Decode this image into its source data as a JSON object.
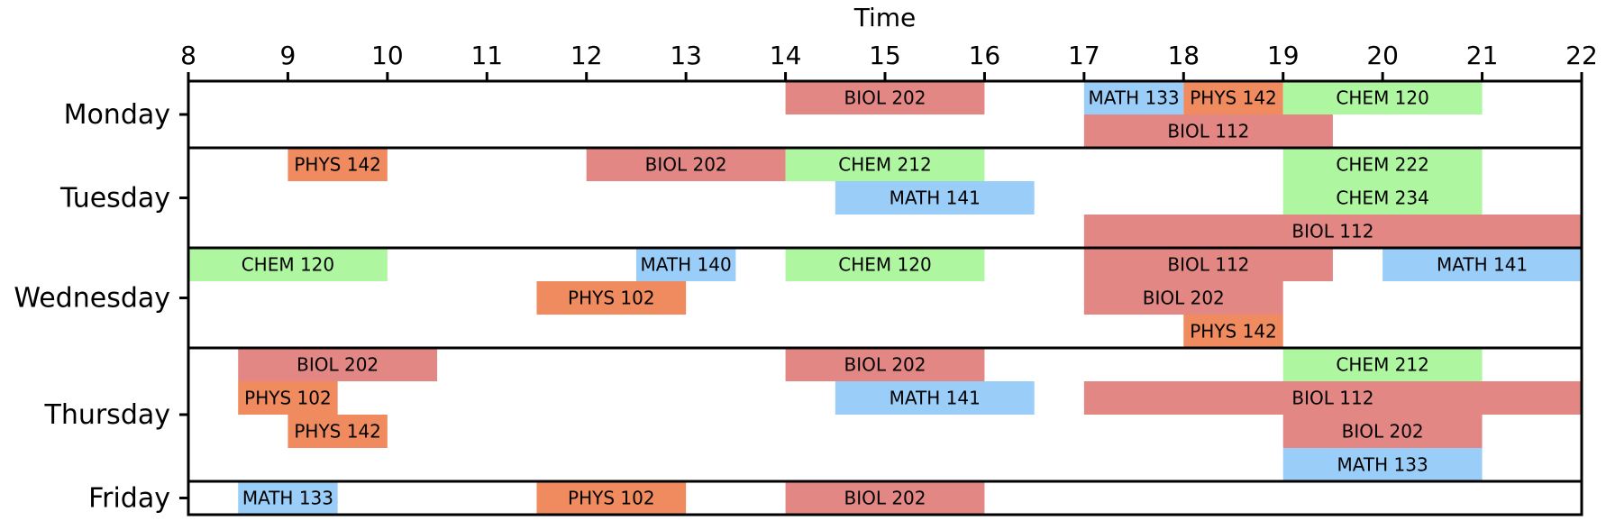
{
  "chart_data": {
    "type": "bar",
    "orientation": "horizontal",
    "xlabel": "Time",
    "xlim": [
      8,
      22
    ],
    "xticks": [
      "8",
      "9",
      "10",
      "11",
      "12",
      "13",
      "14",
      "15",
      "16",
      "17",
      "18",
      "19",
      "20",
      "21",
      "22"
    ],
    "grid": false,
    "subject_colors": {
      "BIOL": "#e38785",
      "PHYS": "#ef8b5f",
      "CHEM": "#aef7a0",
      "MATH": "#9acdf7"
    },
    "days": [
      {
        "name": "Monday",
        "rows": 2,
        "classes": [
          {
            "course": "BIOL 202",
            "start": 14,
            "end": 16,
            "row": 0
          },
          {
            "course": "MATH 133",
            "start": 17,
            "end": 18,
            "row": 0
          },
          {
            "course": "PHYS 142",
            "start": 18,
            "end": 19,
            "row": 0
          },
          {
            "course": "CHEM 120",
            "start": 19,
            "end": 21,
            "row": 0
          },
          {
            "course": "BIOL 112",
            "start": 17,
            "end": 19.5,
            "row": 1
          }
        ]
      },
      {
        "name": "Tuesday",
        "rows": 3,
        "classes": [
          {
            "course": "PHYS 142",
            "start": 9,
            "end": 10,
            "row": 0
          },
          {
            "course": "BIOL 202",
            "start": 12,
            "end": 14,
            "row": 0
          },
          {
            "course": "CHEM 212",
            "start": 14,
            "end": 16,
            "row": 0
          },
          {
            "course": "CHEM 222",
            "start": 19,
            "end": 21,
            "row": 0
          },
          {
            "course": "MATH 141",
            "start": 14.5,
            "end": 16.5,
            "row": 1
          },
          {
            "course": "CHEM 234",
            "start": 19,
            "end": 21,
            "row": 1
          },
          {
            "course": "BIOL 112",
            "start": 17,
            "end": 22,
            "row": 2
          }
        ]
      },
      {
        "name": "Wednesday",
        "rows": 3,
        "classes": [
          {
            "course": "CHEM 120",
            "start": 8,
            "end": 10,
            "row": 0
          },
          {
            "course": "MATH 140",
            "start": 12.5,
            "end": 13.5,
            "row": 0
          },
          {
            "course": "CHEM 120",
            "start": 14,
            "end": 16,
            "row": 0
          },
          {
            "course": "BIOL 112",
            "start": 17,
            "end": 19.5,
            "row": 0
          },
          {
            "course": "MATH 141",
            "start": 20,
            "end": 22,
            "row": 0
          },
          {
            "course": "PHYS 102",
            "start": 11.5,
            "end": 13,
            "row": 1
          },
          {
            "course": "BIOL 202",
            "start": 17,
            "end": 19,
            "row": 1
          },
          {
            "course": "PHYS 142",
            "start": 18,
            "end": 19,
            "row": 2
          }
        ]
      },
      {
        "name": "Thursday",
        "rows": 4,
        "classes": [
          {
            "course": "BIOL 202",
            "start": 8.5,
            "end": 10.5,
            "row": 0
          },
          {
            "course": "BIOL 202",
            "start": 14,
            "end": 16,
            "row": 0
          },
          {
            "course": "CHEM 212",
            "start": 19,
            "end": 21,
            "row": 0
          },
          {
            "course": "PHYS 102",
            "start": 8.5,
            "end": 9.5,
            "row": 1
          },
          {
            "course": "MATH 141",
            "start": 14.5,
            "end": 16.5,
            "row": 1
          },
          {
            "course": "BIOL 112",
            "start": 17,
            "end": 22,
            "row": 1
          },
          {
            "course": "PHYS 142",
            "start": 9,
            "end": 10,
            "row": 2
          },
          {
            "course": "BIOL 202",
            "start": 19,
            "end": 21,
            "row": 2
          },
          {
            "course": "MATH 133",
            "start": 19,
            "end": 21,
            "row": 3
          }
        ]
      },
      {
        "name": "Friday",
        "rows": 1,
        "classes": [
          {
            "course": "MATH 133",
            "start": 8.5,
            "end": 9.5,
            "row": 0
          },
          {
            "course": "PHYS 102",
            "start": 11.5,
            "end": 13,
            "row": 0
          },
          {
            "course": "BIOL 202",
            "start": 14,
            "end": 16,
            "row": 0
          }
        ]
      }
    ]
  }
}
